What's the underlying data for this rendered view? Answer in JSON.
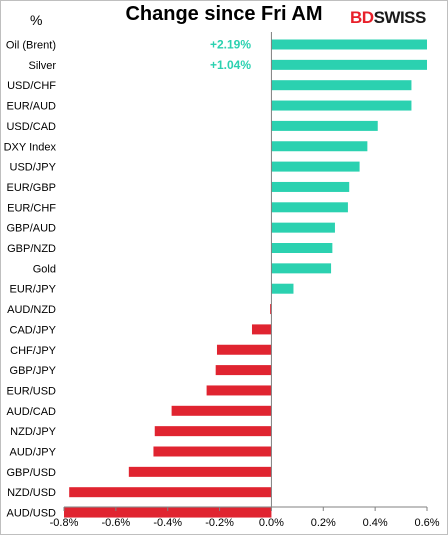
{
  "chart_data": {
    "type": "bar",
    "orientation": "horizontal",
    "title": "Change since Fri AM",
    "unit_label": "%",
    "brand": {
      "prefix": "BD",
      "suffix": "SWISS"
    },
    "categories": [
      "Oil (Brent)",
      "Silver",
      "USD/CHF",
      "EUR/AUD",
      "USD/CAD",
      "DXY Index",
      "USD/JPY",
      "EUR/GBP",
      "EUR/CHF",
      "GBP/AUD",
      "GBP/NZD",
      "Gold",
      "EUR/JPY",
      "AUD/NZD",
      "CAD/JPY",
      "CHF/JPY",
      "GBP/JPY",
      "EUR/USD",
      "AUD/CAD",
      "NZD/JPY",
      "AUD/JPY",
      "GBP/USD",
      "NZD/USD",
      "AUD/USD"
    ],
    "values": [
      0.6,
      0.6,
      0.54,
      0.54,
      0.41,
      0.37,
      0.34,
      0.3,
      0.295,
      0.245,
      0.235,
      0.23,
      0.085,
      -0.005,
      -0.075,
      -0.21,
      -0.215,
      -0.25,
      -0.385,
      -0.45,
      -0.455,
      -0.55,
      -0.78,
      -0.8
    ],
    "annotations": [
      {
        "category": "Oil (Brent)",
        "text": "+2.19%"
      },
      {
        "category": "Silver",
        "text": "+1.04%"
      }
    ],
    "xlim": [
      -0.8,
      0.6
    ],
    "xticks": [
      -0.8,
      -0.6,
      -0.4,
      -0.2,
      0.0,
      0.2,
      0.4,
      0.6
    ],
    "xtick_labels": [
      "-0.8%",
      "-0.6%",
      "-0.4%",
      "-0.2%",
      "0.0%",
      "0.2%",
      "0.4%",
      "0.6%"
    ],
    "grid": false,
    "colors": {
      "positive": "#2bd1b0",
      "negative": "#e02430",
      "axis": "#808080"
    }
  }
}
